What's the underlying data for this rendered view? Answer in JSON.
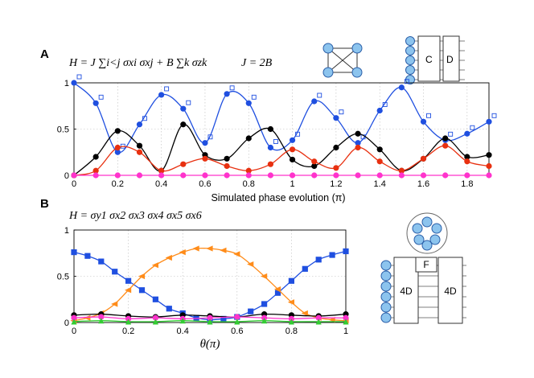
{
  "panel_a": {
    "label": "A",
    "equation": "H = J ∑i<j σxi σxj + B ∑k σzk",
    "param": "J = 2B",
    "box_c": "C",
    "box_d": "D"
  },
  "panel_b": {
    "label": "B",
    "equation": "H = σy1 σx2 σx3 σx4 σx5 σx6",
    "box_f": "F",
    "box_4d_left": "4D",
    "box_4d_right": "4D"
  },
  "chart_data": [
    {
      "type": "line",
      "xlabel": "Simulated phase evolution (π)",
      "ylabel": "",
      "xlim": [
        0,
        1.9
      ],
      "ylim": [
        0,
        1
      ],
      "x_ticks": [
        "0",
        "0.2",
        "0.4",
        "0.6",
        "0.8",
        "1",
        "1.2",
        "1.4",
        "1.6",
        "1.8"
      ],
      "y_ticks": [
        "0",
        "0.5",
        "1"
      ],
      "grid": true,
      "series": [
        {
          "color": "#1f4fe0",
          "marker": "circle-and-square",
          "x": [
            0,
            0.1,
            0.2,
            0.3,
            0.4,
            0.5,
            0.6,
            0.7,
            0.8,
            0.9,
            1.0,
            1.1,
            1.2,
            1.3,
            1.4,
            1.5,
            1.6,
            1.7,
            1.8,
            1.9
          ],
          "values": [
            1.0,
            0.78,
            0.25,
            0.55,
            0.87,
            0.72,
            0.35,
            0.88,
            0.78,
            0.3,
            0.38,
            0.8,
            0.62,
            0.35,
            0.7,
            0.95,
            0.58,
            0.38,
            0.45,
            0.58
          ]
        },
        {
          "color": "#000000",
          "marker": "circle",
          "x": [
            0,
            0.1,
            0.2,
            0.3,
            0.4,
            0.5,
            0.6,
            0.7,
            0.8,
            0.9,
            1.0,
            1.1,
            1.2,
            1.3,
            1.4,
            1.5,
            1.6,
            1.7,
            1.8,
            1.9
          ],
          "values": [
            0.0,
            0.2,
            0.48,
            0.32,
            0.05,
            0.55,
            0.22,
            0.18,
            0.4,
            0.5,
            0.17,
            0.1,
            0.3,
            0.45,
            0.28,
            0.05,
            0.18,
            0.4,
            0.2,
            0.22
          ]
        },
        {
          "color": "#e83010",
          "marker": "circle",
          "x": [
            0,
            0.1,
            0.2,
            0.3,
            0.4,
            0.5,
            0.6,
            0.7,
            0.8,
            0.9,
            1.0,
            1.1,
            1.2,
            1.3,
            1.4,
            1.5,
            1.6,
            1.7,
            1.8,
            1.9
          ],
          "values": [
            0.0,
            0.05,
            0.3,
            0.25,
            0.05,
            0.12,
            0.18,
            0.1,
            0.05,
            0.12,
            0.28,
            0.15,
            0.08,
            0.3,
            0.15,
            0.05,
            0.18,
            0.32,
            0.15,
            0.1
          ]
        },
        {
          "color": "#ff33cc",
          "marker": "circle",
          "x": [
            0,
            0.1,
            0.2,
            0.3,
            0.4,
            0.5,
            0.6,
            0.7,
            0.8,
            0.9,
            1.0,
            1.1,
            1.2,
            1.3,
            1.4,
            1.5,
            1.6,
            1.7,
            1.8,
            1.9
          ],
          "values": [
            0.0,
            0.0,
            0.0,
            0.0,
            0.0,
            0.0,
            0.0,
            0.0,
            0.0,
            0.0,
            0.0,
            0.0,
            0.0,
            0.0,
            0.0,
            0.0,
            0.0,
            0.0,
            0.0,
            0.0
          ]
        }
      ]
    },
    {
      "type": "line",
      "xlabel": "θ(π)",
      "ylabel": "",
      "xlim": [
        0,
        1
      ],
      "ylim": [
        0,
        1
      ],
      "x_ticks": [
        "0",
        "0.2",
        "0.4",
        "0.6",
        "0.8",
        "1"
      ],
      "y_ticks": [
        "0",
        "0.5",
        "1"
      ],
      "grid": true,
      "series": [
        {
          "color": "#1f4fe0",
          "marker": "square",
          "x": [
            0,
            0.05,
            0.1,
            0.15,
            0.2,
            0.25,
            0.3,
            0.35,
            0.4,
            0.45,
            0.5,
            0.55,
            0.6,
            0.65,
            0.7,
            0.75,
            0.8,
            0.85,
            0.9,
            0.95,
            1.0
          ],
          "values": [
            0.76,
            0.72,
            0.66,
            0.55,
            0.45,
            0.35,
            0.25,
            0.15,
            0.1,
            0.05,
            0.03,
            0.04,
            0.06,
            0.12,
            0.2,
            0.32,
            0.45,
            0.58,
            0.68,
            0.73,
            0.77
          ]
        },
        {
          "color": "#ff8c1a",
          "marker": "triangle-left",
          "x": [
            0,
            0.05,
            0.1,
            0.15,
            0.2,
            0.25,
            0.3,
            0.35,
            0.4,
            0.45,
            0.5,
            0.55,
            0.6,
            0.65,
            0.7,
            0.75,
            0.8,
            0.85,
            0.9,
            0.95,
            1.0
          ],
          "values": [
            0.02,
            0.05,
            0.1,
            0.2,
            0.35,
            0.5,
            0.62,
            0.7,
            0.76,
            0.8,
            0.8,
            0.78,
            0.74,
            0.63,
            0.5,
            0.36,
            0.22,
            0.1,
            0.05,
            0.03,
            0.02
          ]
        },
        {
          "color": "#000000",
          "marker": "circle",
          "x": [
            0,
            0.1,
            0.2,
            0.3,
            0.4,
            0.5,
            0.6,
            0.7,
            0.8,
            0.9,
            1.0
          ],
          "values": [
            0.08,
            0.09,
            0.07,
            0.06,
            0.08,
            0.07,
            0.06,
            0.09,
            0.08,
            0.07,
            0.09
          ]
        },
        {
          "color": "#ff33cc",
          "marker": "circle",
          "x": [
            0,
            0.1,
            0.2,
            0.3,
            0.4,
            0.5,
            0.6,
            0.7,
            0.8,
            0.9,
            1.0
          ],
          "values": [
            0.05,
            0.06,
            0.04,
            0.05,
            0.04,
            0.05,
            0.06,
            0.05,
            0.04,
            0.05,
            0.05
          ]
        },
        {
          "color": "#33cc33",
          "marker": "triangle",
          "x": [
            0,
            0.1,
            0.2,
            0.3,
            0.4,
            0.5,
            0.6,
            0.7,
            0.8,
            0.9,
            1.0
          ],
          "values": [
            0.01,
            0.02,
            0.01,
            0.01,
            0.02,
            0.01,
            0.01,
            0.02,
            0.01,
            0.01,
            0.01
          ]
        }
      ]
    }
  ],
  "colors": {
    "blue": "#1f4fe0",
    "black": "#000000",
    "red": "#e83010",
    "magenta": "#ff33cc",
    "orange": "#ff8c1a",
    "green": "#33cc33",
    "node_fill": "#8cc4ee"
  }
}
